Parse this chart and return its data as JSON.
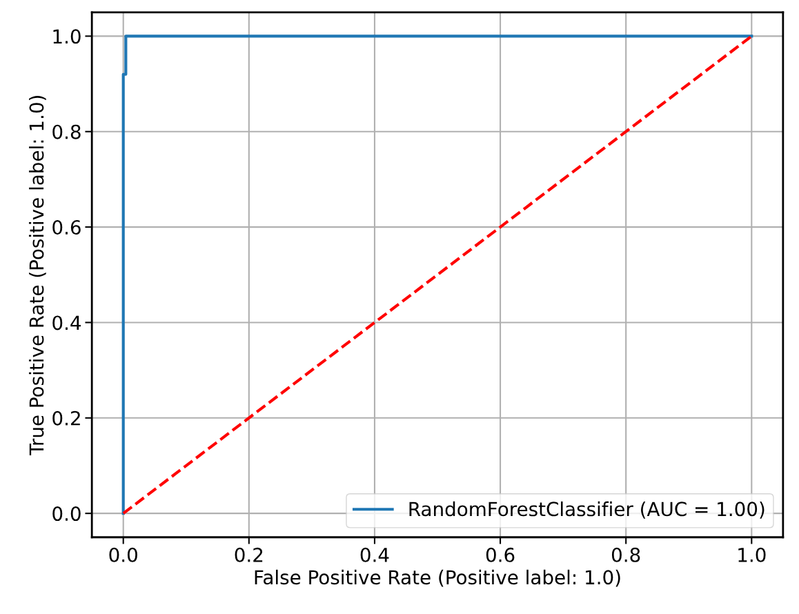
{
  "chart_data": {
    "type": "line",
    "xlabel": "False Positive Rate (Positive label: 1.0)",
    "ylabel": "True Positive Rate (Positive label: 1.0)",
    "xlim": [
      -0.05,
      1.05
    ],
    "ylim": [
      -0.05,
      1.05
    ],
    "xticks": [
      {
        "value": 0,
        "label": "0.0"
      },
      0.2,
      0.4,
      0.6,
      0.8,
      {
        "value": 1,
        "label": "1.0"
      }
    ],
    "yticks": [
      {
        "value": 0,
        "label": "0.0"
      },
      0.2,
      0.4,
      0.6,
      0.8,
      {
        "value": 1,
        "label": "1.0"
      }
    ],
    "grid": true,
    "legend": "bottom right",
    "series": [
      {
        "name": "RandomForestClassifier (AUC = 1.00)",
        "color": "#1f77b4",
        "line_style": "solid",
        "x": [
          0,
          0,
          0.004,
          0.004,
          1
        ],
        "values": [
          0,
          0.92,
          0.92,
          1.0,
          1.0
        ]
      },
      {
        "color": "#ff0000",
        "line_style": "dashed",
        "x": [
          0,
          1
        ],
        "values": [
          0,
          1
        ]
      }
    ]
  }
}
